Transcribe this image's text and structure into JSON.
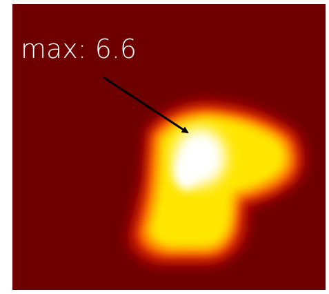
{
  "annotation": "max: 6.6"
}
